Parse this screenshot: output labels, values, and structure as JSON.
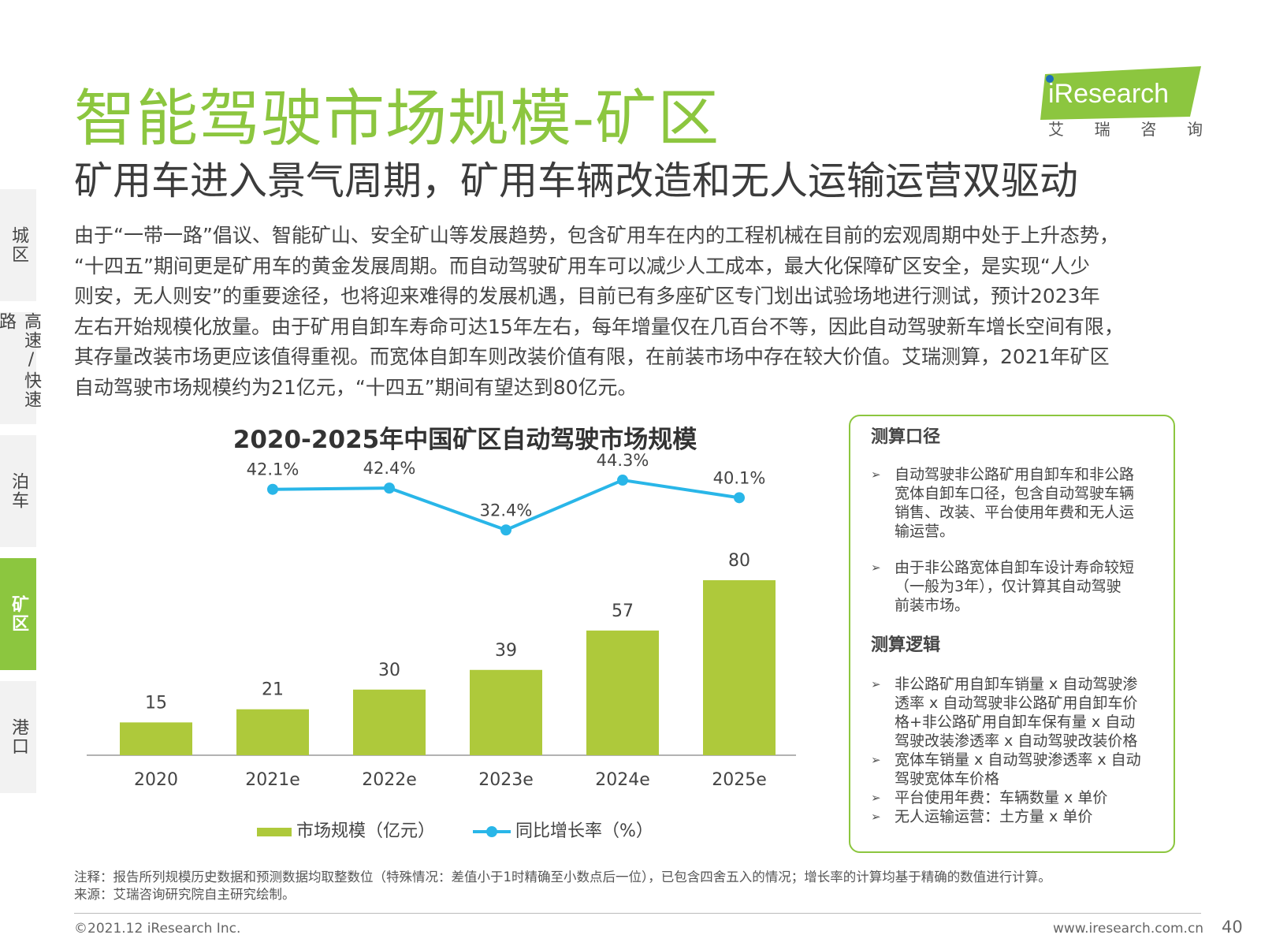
{
  "header": {
    "title": "智能驾驶市场规模-矿区",
    "subtitle": "矿用车进入景气周期，矿用车辆改造和无人运输运营双驱动"
  },
  "logo": {
    "brand": "iResearch",
    "cn_chars": [
      "艾",
      "瑞",
      "咨",
      "询"
    ],
    "color": "#8cc63f"
  },
  "sidebar": {
    "items": [
      {
        "label": "城区",
        "active": false
      },
      {
        "label": "高速/快速路",
        "active": false
      },
      {
        "label": "泊车",
        "active": false
      },
      {
        "label": "矿区",
        "active": true
      },
      {
        "label": "港口",
        "active": false
      }
    ]
  },
  "paragraph": {
    "lines": [
      "由于“一带一路”倡议、智能矿山、安全矿山等发展趋势，包含矿用车在内的工程机械在目前的宏观周期中处于上升态势，",
      "“十四五”期间更是矿用车的黄金发展周期。而自动驾驶矿用车可以减少人工成本，最大化保障矿区安全，是实现“人少",
      "则安，无人则安”的重要途径，也将迎来难得的发展机遇，目前已有多座矿区专门划出试验场地进行测试，预计2023年",
      "左右开始规模化放量。由于矿用自卸车寿命可达15年左右，每年增量仅在几百台不等，因此自动驾驶新车增长空间有限，",
      "其存量改装市场更应该值得重视。而宽体自卸车则改装价值有限，在前装市场中存在较大价值。艾瑞测算，2021年矿区",
      "自动驾驶市场规模约为21亿元，“十四五”期间有望达到80亿元。"
    ]
  },
  "chart_data": {
    "type": "bar",
    "title": "2020-2025年中国矿区自动驾驶市场规模",
    "categories": [
      "2020",
      "2021e",
      "2022e",
      "2023e",
      "2024e",
      "2025e"
    ],
    "series": [
      {
        "name": "市场规模（亿元）",
        "type": "bar",
        "values": [
          15,
          21,
          30,
          39,
          57,
          80
        ],
        "labels": [
          "15",
          "21",
          "30",
          "39",
          "57",
          "80"
        ],
        "color": "#aec93b"
      },
      {
        "name": "同比增长率（%）",
        "type": "line",
        "values": [
          null,
          42.1,
          42.4,
          32.4,
          44.3,
          40.1
        ],
        "labels": [
          "",
          "42.1%",
          "42.4%",
          "32.4%",
          "44.3%",
          "40.1%"
        ],
        "color": "#29b6e8"
      }
    ],
    "legend_position": "bottom",
    "grid": false
  },
  "method_box": {
    "scope_title": "测算口径",
    "scope_items": [
      [
        "自动驾驶非公路矿用自卸车和非公路",
        "宽体自卸车口径，包含自动驾驶车辆",
        "销售、改装、平台使用年费和无人运",
        "输运营。"
      ],
      [
        "由于非公路宽体自卸车设计寿命较短",
        "（一般为3年），仅计算其自动驾驶",
        "前装市场。"
      ]
    ],
    "logic_title": "测算逻辑",
    "logic_items": [
      [
        "非公路矿用自卸车销量 x 自动驾驶渗",
        "透率 x 自动驾驶非公路矿用自卸车价",
        "格+非公路矿用自卸车保有量 x 自动",
        "驾驶改装渗透率 x 自动驾驶改装价格"
      ],
      [
        "宽体车销量 x 自动驾驶渗透率 x 自动",
        "驾驶宽体车价格"
      ],
      [
        "平台使用年费：车辆数量 x 单价"
      ],
      [
        "无人运输运营：土方量 x 单价"
      ]
    ]
  },
  "notes": {
    "note": "注释：报告所列规模历史数据和预测数据均取整数位（特殊情况：差值小于1时精确至小数点后一位），已包含四舍五入的情况；增长率的计算均基于精确的数值进行计算。",
    "source": "来源：艾瑞咨询研究院自主研究绘制。"
  },
  "footer": {
    "copyright": "©2021.12 iResearch Inc.",
    "website": "www.iresearch.com.cn",
    "page": "40"
  }
}
